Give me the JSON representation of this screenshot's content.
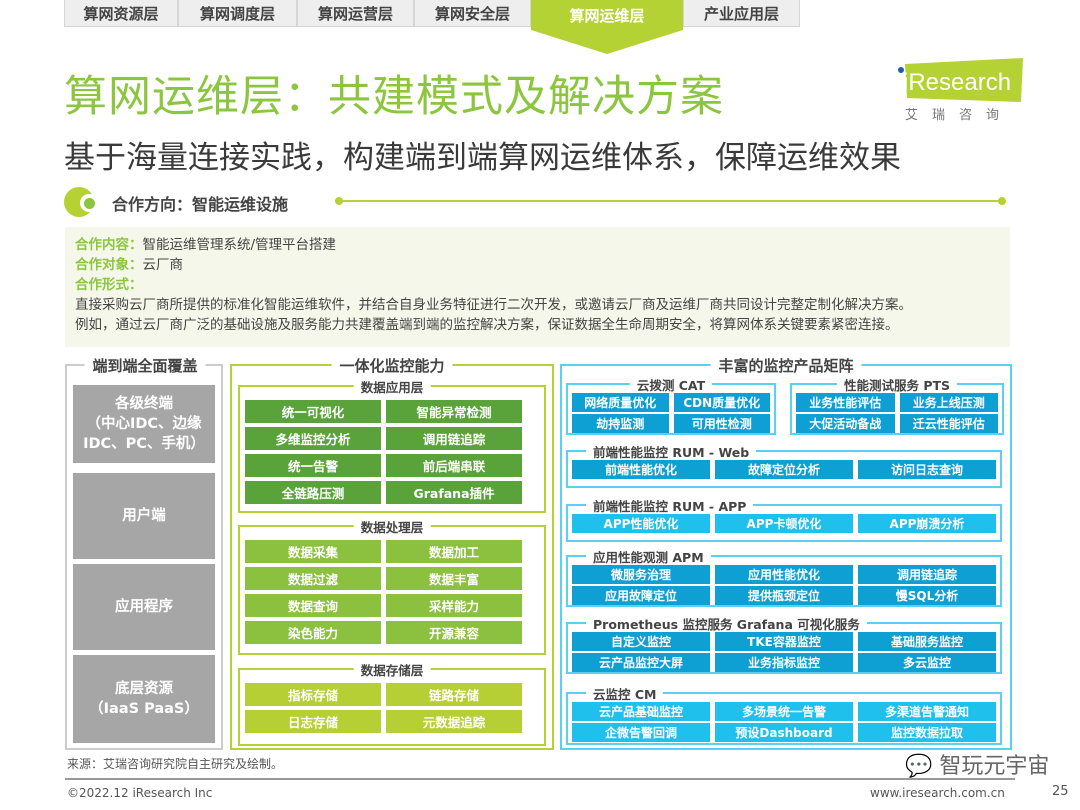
{
  "tabs": [
    "算网资源层",
    "算网调度层",
    "算网运营层",
    "算网安全层",
    "算网运维层",
    "产业应用层"
  ],
  "active_tab": 4,
  "title": "算网运维层：共建模式及解决方案",
  "subtitle": "基于海量连接实践，构建端到端算网运维体系，保障运维效果",
  "logo": {
    "brand": "iResearch",
    "cn": "艾瑞咨询"
  },
  "section": {
    "label": "合作方向：智能运维设施"
  },
  "info": {
    "content_key": "合作内容：",
    "content_val": "智能运维管理系统/管理平台搭建",
    "target_key": "合作对象：",
    "target_val": "云厂商",
    "form_key": "合作形式：",
    "line1": "直接采购云厂商所提供的标准化智能运维软件，并结合自身业务特征进行二次开发，或邀请云厂商及运维厂商共同设计完整定制化解决方案。",
    "line2": "例如，通过云厂商广泛的基础设施及服务能力共建覆盖端到端的监控解决方案，保证数据全生命周期安全，将算网体系关键要素紧密连接。"
  },
  "left": {
    "title": "端到端全面覆盖",
    "items": [
      "各级终端\n（中心IDC、边缘\nIDC、PC、手机）",
      "用户端",
      "应用程序",
      "底层资源\n（IaaS PaaS）"
    ]
  },
  "middle": {
    "title": "一体化监控能力",
    "panels": [
      {
        "title": "数据应用层",
        "items": [
          "统一可视化",
          "智能异常检测",
          "多维监控分析",
          "调用链追踪",
          "统一告警",
          "前后端串联",
          "全链路压测",
          "Grafana插件"
        ]
      },
      {
        "title": "数据处理层",
        "items": [
          "数据采集",
          "数据加工",
          "数据过滤",
          "数据丰富",
          "数据查询",
          "采样能力",
          "染色能力",
          "开源兼容"
        ]
      },
      {
        "title": "数据存储层",
        "items": [
          "指标存储",
          "链路存储",
          "日志存储",
          "元数据追踪"
        ]
      }
    ]
  },
  "right": {
    "title": "丰富的监控产品矩阵",
    "panels": [
      {
        "title": "云拨测 CAT",
        "items": [
          "网络质量优化",
          "CDN质量优化",
          "劫持监测",
          "可用性检测"
        ]
      },
      {
        "title": "性能测试服务 PTS",
        "items": [
          "业务性能评估",
          "业务上线压测",
          "大促活动备战",
          "迁云性能评估"
        ]
      },
      {
        "title": "前端性能监控 RUM - Web",
        "items": [
          "前端性能优化",
          "故障定位分析",
          "访问日志查询"
        ]
      },
      {
        "title": "前端性能监控 RUM - APP",
        "items": [
          "APP性能优化",
          "APP卡顿优化",
          "APP崩溃分析"
        ]
      },
      {
        "title": "应用性能观测 APM",
        "items": [
          "微服务治理",
          "应用性能优化",
          "调用链追踪",
          "应用故障定位",
          "提供瓶颈定位",
          "慢SQL分析"
        ]
      },
      {
        "title": "Prometheus 监控服务 Grafana 可视化服务",
        "items": [
          "自定义监控",
          "TKE容器监控",
          "基础服务监控",
          "云产品监控大屏",
          "业务指标监控",
          "多云监控"
        ]
      },
      {
        "title": "云监控 CM",
        "items": [
          "云产品基础监控",
          "多场景统一告警",
          "多渠道告警通知",
          "企微告警回调",
          "预设Dashboard",
          "监控数据拉取"
        ]
      }
    ]
  },
  "footer": {
    "source": "来源：艾瑞咨询研究院自主研究及绘制。",
    "copyright": "©2022.12 iResearch Inc",
    "url": "www.iresearch.com.cn",
    "page": "25",
    "watermark": "智玩元宇宙"
  },
  "colors": {
    "green": "#8cc63f",
    "lime": "#b4d233",
    "app": "#5aa33a",
    "proc": "#8cc13f",
    "store": "#b5cf34",
    "blue": "#0e9fd3",
    "lightblue": "#1fc0ec",
    "gray": "#a6a6a6"
  }
}
